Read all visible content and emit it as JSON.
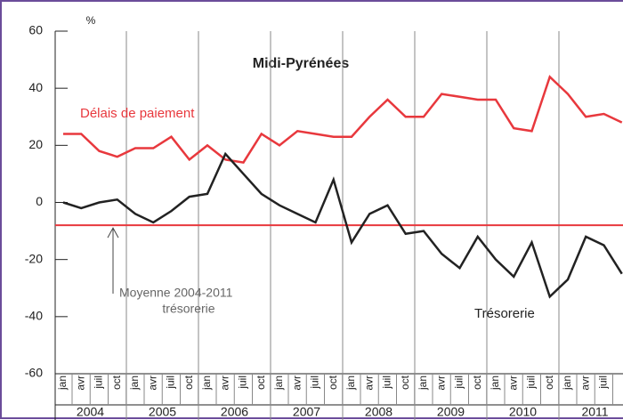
{
  "chart_data": {
    "type": "line",
    "title": "Midi-Pyrénées",
    "unit": "%",
    "categories": [
      "jan",
      "avr",
      "juil",
      "oct",
      "jan",
      "avr",
      "juil",
      "oct",
      "jan",
      "avr",
      "juil",
      "oct",
      "jan",
      "avr",
      "juil",
      "oct",
      "jan",
      "avr",
      "juil",
      "oct",
      "jan",
      "avr",
      "juil",
      "oct",
      "jan",
      "avr",
      "juil",
      "oct",
      "jan",
      "avr",
      "juil",
      "oct"
    ],
    "years": [
      "2004",
      "2005",
      "2006",
      "2007",
      "2008",
      "2009",
      "2010",
      "2011"
    ],
    "series": [
      {
        "name": "Délais de paiement",
        "color": "#e8383d",
        "values": [
          24,
          24,
          18,
          16,
          19,
          19,
          23,
          15,
          20,
          15,
          14,
          24,
          20,
          25,
          24,
          23,
          23,
          30,
          36,
          30,
          30,
          38,
          37,
          36,
          36,
          26,
          25,
          44,
          38,
          30,
          31,
          28
        ]
      },
      {
        "name": "Trésorerie",
        "color": "#222222",
        "values": [
          0,
          -2,
          0,
          1,
          -4,
          -7,
          -3,
          2,
          3,
          17,
          10,
          3,
          -1,
          -4,
          -7,
          8,
          -14,
          -4,
          -1,
          -11,
          -10,
          -18,
          -23,
          -12,
          -20,
          -26,
          -14,
          -33,
          -27,
          -12,
          -15,
          -25
        ]
      }
    ],
    "reference_line": {
      "value": -8,
      "color": "#e8383d",
      "label": [
        "Moyenne 2004-2011",
        "trésorerie"
      ]
    },
    "ylim": [
      -60,
      60
    ],
    "yticks": [
      -60,
      -40,
      -20,
      0,
      20,
      40,
      60
    ]
  }
}
